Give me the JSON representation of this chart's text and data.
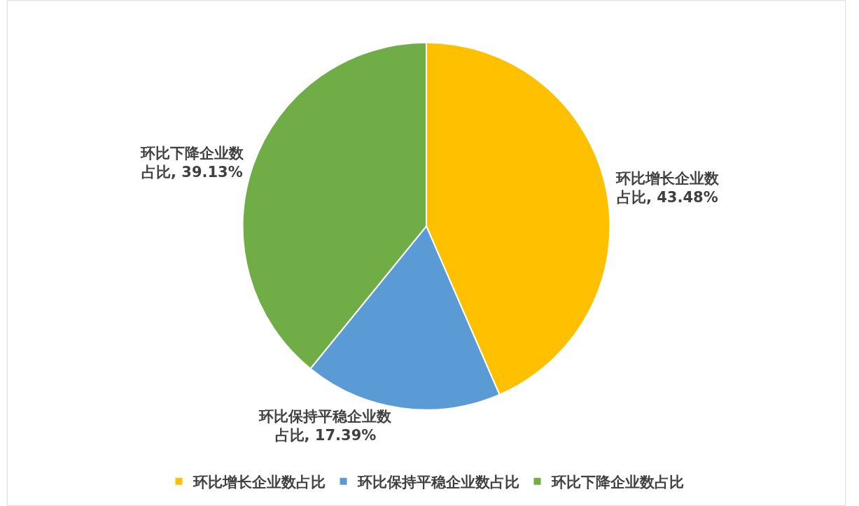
{
  "chart_data": {
    "type": "pie",
    "categories": [
      "环比增长企业数占比",
      "环比保持平稳企业数占比",
      "环比下降企业数占比"
    ],
    "values": [
      43.48,
      17.39,
      39.13
    ],
    "value_labels": [
      "环比增长企业数占比, 43.48%",
      "环比保持平稳企业数占比, 17.39%",
      "环比下降企业数占比, 39.13%"
    ],
    "colors": [
      "#ffc000",
      "#5b9bd5",
      "#70ad47"
    ],
    "legend": "bottom"
  }
}
